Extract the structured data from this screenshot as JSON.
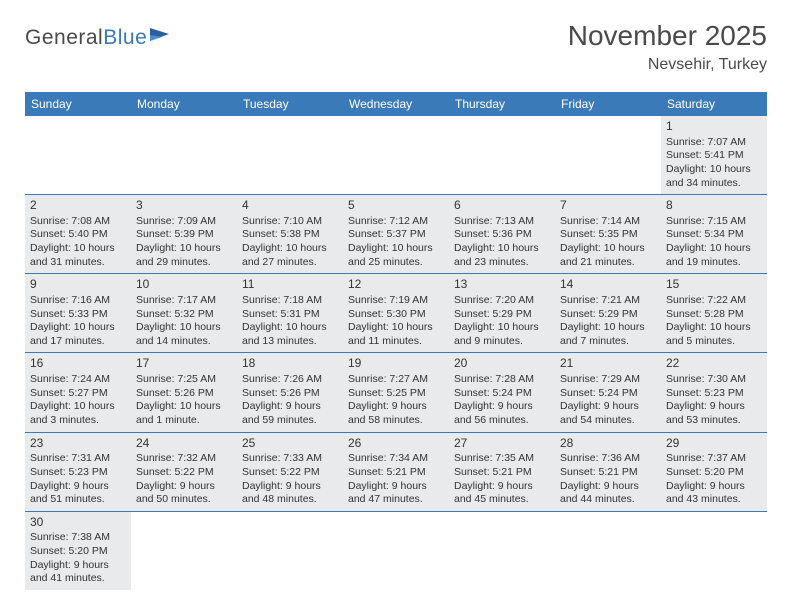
{
  "logo": {
    "text1": "General",
    "text2": "Blue"
  },
  "title": "November 2025",
  "location": "Nevsehir, Turkey",
  "colors": {
    "header_bg": "#3a7ab8",
    "cell_bg": "#e9eaeb",
    "border": "#3a7ab8",
    "text": "#333333"
  },
  "dayHeaders": [
    "Sunday",
    "Monday",
    "Tuesday",
    "Wednesday",
    "Thursday",
    "Friday",
    "Saturday"
  ],
  "weeks": [
    [
      {
        "empty": true
      },
      {
        "empty": true
      },
      {
        "empty": true
      },
      {
        "empty": true
      },
      {
        "empty": true
      },
      {
        "empty": true
      },
      {
        "num": "1",
        "sunrise": "Sunrise: 7:07 AM",
        "sunset": "Sunset: 5:41 PM",
        "daylight": "Daylight: 10 hours and 34 minutes."
      }
    ],
    [
      {
        "num": "2",
        "sunrise": "Sunrise: 7:08 AM",
        "sunset": "Sunset: 5:40 PM",
        "daylight": "Daylight: 10 hours and 31 minutes."
      },
      {
        "num": "3",
        "sunrise": "Sunrise: 7:09 AM",
        "sunset": "Sunset: 5:39 PM",
        "daylight": "Daylight: 10 hours and 29 minutes."
      },
      {
        "num": "4",
        "sunrise": "Sunrise: 7:10 AM",
        "sunset": "Sunset: 5:38 PM",
        "daylight": "Daylight: 10 hours and 27 minutes."
      },
      {
        "num": "5",
        "sunrise": "Sunrise: 7:12 AM",
        "sunset": "Sunset: 5:37 PM",
        "daylight": "Daylight: 10 hours and 25 minutes."
      },
      {
        "num": "6",
        "sunrise": "Sunrise: 7:13 AM",
        "sunset": "Sunset: 5:36 PM",
        "daylight": "Daylight: 10 hours and 23 minutes."
      },
      {
        "num": "7",
        "sunrise": "Sunrise: 7:14 AM",
        "sunset": "Sunset: 5:35 PM",
        "daylight": "Daylight: 10 hours and 21 minutes."
      },
      {
        "num": "8",
        "sunrise": "Sunrise: 7:15 AM",
        "sunset": "Sunset: 5:34 PM",
        "daylight": "Daylight: 10 hours and 19 minutes."
      }
    ],
    [
      {
        "num": "9",
        "sunrise": "Sunrise: 7:16 AM",
        "sunset": "Sunset: 5:33 PM",
        "daylight": "Daylight: 10 hours and 17 minutes."
      },
      {
        "num": "10",
        "sunrise": "Sunrise: 7:17 AM",
        "sunset": "Sunset: 5:32 PM",
        "daylight": "Daylight: 10 hours and 14 minutes."
      },
      {
        "num": "11",
        "sunrise": "Sunrise: 7:18 AM",
        "sunset": "Sunset: 5:31 PM",
        "daylight": "Daylight: 10 hours and 13 minutes."
      },
      {
        "num": "12",
        "sunrise": "Sunrise: 7:19 AM",
        "sunset": "Sunset: 5:30 PM",
        "daylight": "Daylight: 10 hours and 11 minutes."
      },
      {
        "num": "13",
        "sunrise": "Sunrise: 7:20 AM",
        "sunset": "Sunset: 5:29 PM",
        "daylight": "Daylight: 10 hours and 9 minutes."
      },
      {
        "num": "14",
        "sunrise": "Sunrise: 7:21 AM",
        "sunset": "Sunset: 5:29 PM",
        "daylight": "Daylight: 10 hours and 7 minutes."
      },
      {
        "num": "15",
        "sunrise": "Sunrise: 7:22 AM",
        "sunset": "Sunset: 5:28 PM",
        "daylight": "Daylight: 10 hours and 5 minutes."
      }
    ],
    [
      {
        "num": "16",
        "sunrise": "Sunrise: 7:24 AM",
        "sunset": "Sunset: 5:27 PM",
        "daylight": "Daylight: 10 hours and 3 minutes."
      },
      {
        "num": "17",
        "sunrise": "Sunrise: 7:25 AM",
        "sunset": "Sunset: 5:26 PM",
        "daylight": "Daylight: 10 hours and 1 minute."
      },
      {
        "num": "18",
        "sunrise": "Sunrise: 7:26 AM",
        "sunset": "Sunset: 5:26 PM",
        "daylight": "Daylight: 9 hours and 59 minutes."
      },
      {
        "num": "19",
        "sunrise": "Sunrise: 7:27 AM",
        "sunset": "Sunset: 5:25 PM",
        "daylight": "Daylight: 9 hours and 58 minutes."
      },
      {
        "num": "20",
        "sunrise": "Sunrise: 7:28 AM",
        "sunset": "Sunset: 5:24 PM",
        "daylight": "Daylight: 9 hours and 56 minutes."
      },
      {
        "num": "21",
        "sunrise": "Sunrise: 7:29 AM",
        "sunset": "Sunset: 5:24 PM",
        "daylight": "Daylight: 9 hours and 54 minutes."
      },
      {
        "num": "22",
        "sunrise": "Sunrise: 7:30 AM",
        "sunset": "Sunset: 5:23 PM",
        "daylight": "Daylight: 9 hours and 53 minutes."
      }
    ],
    [
      {
        "num": "23",
        "sunrise": "Sunrise: 7:31 AM",
        "sunset": "Sunset: 5:23 PM",
        "daylight": "Daylight: 9 hours and 51 minutes."
      },
      {
        "num": "24",
        "sunrise": "Sunrise: 7:32 AM",
        "sunset": "Sunset: 5:22 PM",
        "daylight": "Daylight: 9 hours and 50 minutes."
      },
      {
        "num": "25",
        "sunrise": "Sunrise: 7:33 AM",
        "sunset": "Sunset: 5:22 PM",
        "daylight": "Daylight: 9 hours and 48 minutes."
      },
      {
        "num": "26",
        "sunrise": "Sunrise: 7:34 AM",
        "sunset": "Sunset: 5:21 PM",
        "daylight": "Daylight: 9 hours and 47 minutes."
      },
      {
        "num": "27",
        "sunrise": "Sunrise: 7:35 AM",
        "sunset": "Sunset: 5:21 PM",
        "daylight": "Daylight: 9 hours and 45 minutes."
      },
      {
        "num": "28",
        "sunrise": "Sunrise: 7:36 AM",
        "sunset": "Sunset: 5:21 PM",
        "daylight": "Daylight: 9 hours and 44 minutes."
      },
      {
        "num": "29",
        "sunrise": "Sunrise: 7:37 AM",
        "sunset": "Sunset: 5:20 PM",
        "daylight": "Daylight: 9 hours and 43 minutes."
      }
    ],
    [
      {
        "num": "30",
        "sunrise": "Sunrise: 7:38 AM",
        "sunset": "Sunset: 5:20 PM",
        "daylight": "Daylight: 9 hours and 41 minutes."
      },
      {
        "empty": true
      },
      {
        "empty": true
      },
      {
        "empty": true
      },
      {
        "empty": true
      },
      {
        "empty": true
      },
      {
        "empty": true
      }
    ]
  ]
}
